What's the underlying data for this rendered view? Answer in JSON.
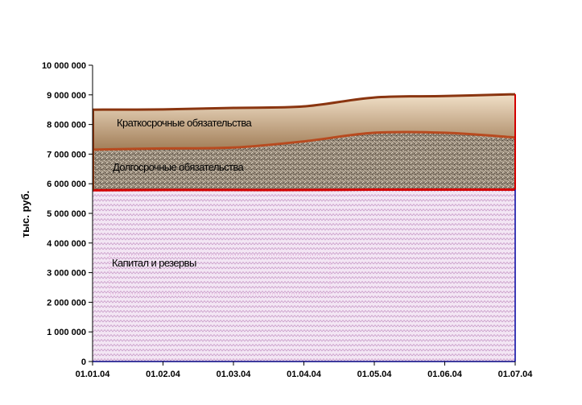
{
  "chart_data": {
    "type": "area",
    "stacked": true,
    "title": "",
    "xlabel": "",
    "ylabel": "тыс. руб.",
    "ylim": [
      0,
      10000000
    ],
    "yticks": [
      "0",
      "1 000 000",
      "2 000 000",
      "3 000 000",
      "4 000 000",
      "5 000 000",
      "6 000 000",
      "7 000 000",
      "8 000 000",
      "9 000 000",
      "10 000 000"
    ],
    "categories": [
      "01.01.04",
      "01.02.04",
      "01.03.04",
      "01.04.04",
      "01.05.04",
      "01.06.04",
      "01.07.04"
    ],
    "grid": false,
    "legend": "none",
    "series": [
      {
        "name": "Капитал и резервы",
        "values": [
          5780000,
          5790000,
          5790000,
          5790000,
          5800000,
          5800000,
          5800000
        ],
        "color": "#e9c8ea"
      },
      {
        "name": "Долгосрочные обязательства",
        "values": [
          1370000,
          1400000,
          1430000,
          1640000,
          1920000,
          1920000,
          1760000
        ],
        "color": "#8f8270"
      },
      {
        "name": "Краткосрочные обязательства",
        "values": [
          1350000,
          1320000,
          1340000,
          1180000,
          1190000,
          1240000,
          1460000
        ],
        "color": "#c9a77e"
      }
    ],
    "annotations": [
      "Краткосрочные обязательства",
      "Долгосрочные обязательства",
      "Капитал и резервы"
    ]
  }
}
